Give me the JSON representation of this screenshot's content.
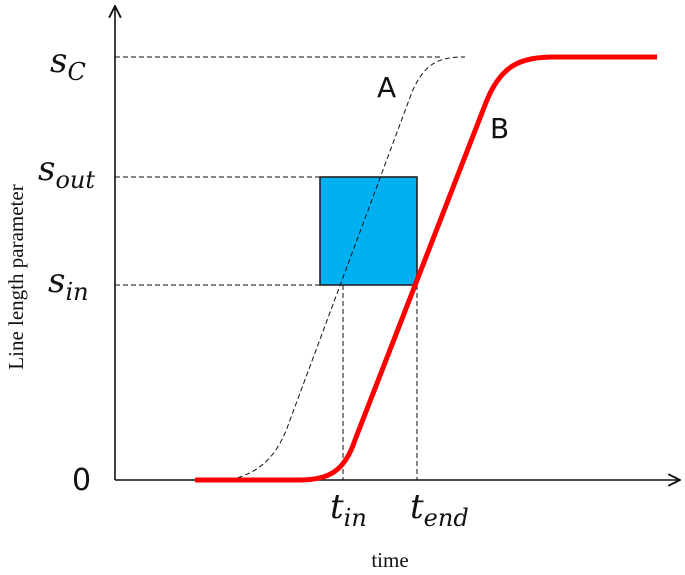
{
  "axes": {
    "y_label": "Line length parameter",
    "x_label": "time",
    "origin": "0"
  },
  "y_labels": [
    {
      "base": "s",
      "sub": "C"
    },
    {
      "base": "s",
      "sub": "out"
    },
    {
      "base": "s",
      "sub": "in"
    }
  ],
  "x_labels": [
    {
      "base": "t",
      "sub": "in"
    },
    {
      "base": "t",
      "sub": "end"
    }
  ],
  "curves": {
    "a": "A",
    "b": "B"
  }
}
